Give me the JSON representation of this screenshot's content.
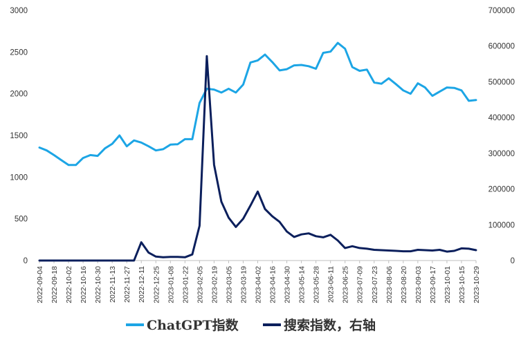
{
  "chart_data": {
    "type": "line",
    "title": "",
    "xlabel": "",
    "ylabel": "",
    "ylim": [
      0,
      3000
    ],
    "y2lim": [
      0,
      700000
    ],
    "grid": false,
    "legend_position": "bottom",
    "yticks": [
      "0",
      "500",
      "1000",
      "1500",
      "2000",
      "2500",
      "3000"
    ],
    "y2ticks": [
      "0",
      "100000",
      "200000",
      "300000",
      "400000",
      "500000",
      "600000",
      "700000"
    ],
    "x_tick_labels": [
      "2022-09-04",
      "2022-09-18",
      "2022-10-02",
      "2022-10-16",
      "2022-10-30",
      "2022-11-13",
      "2022-11-27",
      "2022-12-11",
      "2022-12-25",
      "2023-01-08",
      "2023-01-22",
      "2023-02-05",
      "2023-02-19",
      "2023-03-05",
      "2023-03-19",
      "2023-04-02",
      "2023-04-16",
      "2023-04-30",
      "2023-05-14",
      "2023-05-28",
      "2023-06-11",
      "2023-06-25",
      "2023-07-09",
      "2023-07-23",
      "2023-08-06",
      "2023-08-20",
      "2023-09-03",
      "2023-09-17",
      "2023-10-01",
      "2023-10-15",
      "2023-10-29"
    ],
    "x": [
      "2022-09-04",
      "2022-09-11",
      "2022-09-18",
      "2022-09-25",
      "2022-10-02",
      "2022-10-09",
      "2022-10-16",
      "2022-10-23",
      "2022-10-30",
      "2022-11-06",
      "2022-11-13",
      "2022-11-20",
      "2022-11-27",
      "2022-12-04",
      "2022-12-11",
      "2022-12-18",
      "2022-12-25",
      "2023-01-01",
      "2023-01-08",
      "2023-01-15",
      "2023-01-22",
      "2023-01-29",
      "2023-02-05",
      "2023-02-12",
      "2023-02-19",
      "2023-02-26",
      "2023-03-05",
      "2023-03-12",
      "2023-03-19",
      "2023-03-26",
      "2023-04-02",
      "2023-04-09",
      "2023-04-16",
      "2023-04-23",
      "2023-04-30",
      "2023-05-07",
      "2023-05-14",
      "2023-05-21",
      "2023-05-28",
      "2023-06-04",
      "2023-06-11",
      "2023-06-18",
      "2023-06-25",
      "2023-07-02",
      "2023-07-09",
      "2023-07-16",
      "2023-07-23",
      "2023-07-30",
      "2023-08-06",
      "2023-08-13",
      "2023-08-20",
      "2023-08-27",
      "2023-09-03",
      "2023-09-10",
      "2023-09-17",
      "2023-09-24",
      "2023-10-01",
      "2023-10-08",
      "2023-10-15",
      "2023-10-22",
      "2023-10-29"
    ],
    "series": [
      {
        "name": "ChatGPT指数",
        "axis": "left",
        "color": "#1CA5E5",
        "values": [
          1355,
          1320,
          1265,
          1205,
          1145,
          1145,
          1230,
          1265,
          1255,
          1345,
          1400,
          1500,
          1370,
          1440,
          1415,
          1370,
          1320,
          1335,
          1390,
          1395,
          1455,
          1455,
          1890,
          2060,
          2050,
          2015,
          2060,
          2015,
          2110,
          2375,
          2400,
          2470,
          2380,
          2280,
          2295,
          2340,
          2345,
          2330,
          2300,
          2490,
          2505,
          2610,
          2540,
          2320,
          2275,
          2290,
          2135,
          2120,
          2185,
          2115,
          2040,
          2000,
          2125,
          2075,
          1975,
          2025,
          2075,
          2070,
          2040,
          1915,
          1925
        ]
      },
      {
        "name": "搜索指数，右轴",
        "axis": "right",
        "color": "#0B1F5C",
        "values": [
          0,
          0,
          0,
          0,
          0,
          0,
          0,
          0,
          0,
          0,
          0,
          0,
          0,
          0,
          51000,
          22000,
          11000,
          9000,
          10000,
          10000,
          9000,
          17000,
          97000,
          572000,
          268000,
          165000,
          120000,
          94000,
          117000,
          154000,
          193000,
          144000,
          124000,
          108000,
          81000,
          66000,
          73000,
          76000,
          68000,
          65000,
          72000,
          56000,
          35000,
          40000,
          35000,
          33000,
          30000,
          29000,
          28000,
          27000,
          26000,
          26000,
          30000,
          29000,
          28000,
          30000,
          25000,
          27000,
          34000,
          33000,
          29000
        ]
      }
    ]
  }
}
